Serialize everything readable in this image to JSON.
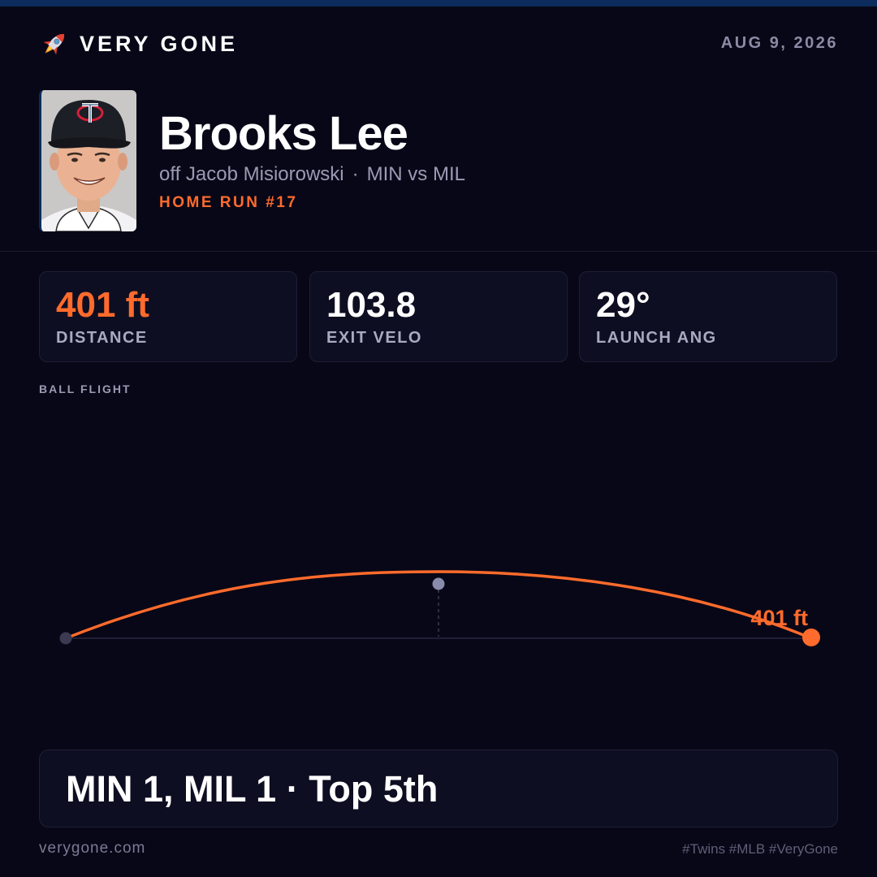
{
  "brand": {
    "name": "VERY GONE",
    "icon": "rocket-icon"
  },
  "date": "AUG 9, 2026",
  "player": {
    "name": "Brooks Lee",
    "pitcher": "off Jacob Misiorowski",
    "separator": "·",
    "matchup": "MIN vs MIL",
    "home_run_label": "HOME RUN #17"
  },
  "stats": [
    {
      "value": "401 ft",
      "label": "DISTANCE"
    },
    {
      "value": "103.8",
      "label": "EXIT VELO"
    },
    {
      "value": "29°",
      "label": "LAUNCH ANG"
    }
  ],
  "ball_flight": {
    "label": "BALL FLIGHT",
    "distance_label": "401 ft"
  },
  "score": {
    "text": "MIN 1, MIL 1 · Top 5th"
  },
  "footer": {
    "site": "verygone.com",
    "tags": "#Twins #MLB #VeryGone"
  },
  "colors": {
    "background": "#080717",
    "accent": "#ff6b2c",
    "navy": "#0b2c5c",
    "card": "#0e0e22",
    "muted": "#9a9bb4"
  }
}
